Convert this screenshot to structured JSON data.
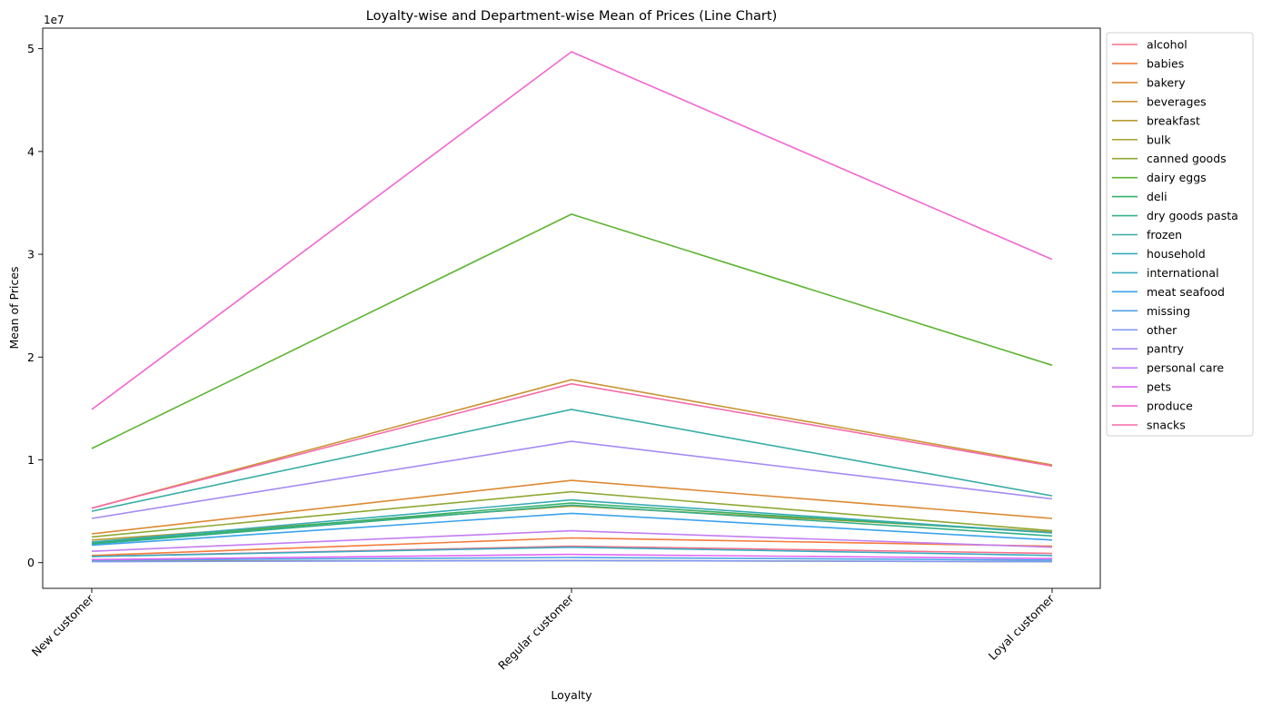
{
  "chart_data": {
    "type": "line",
    "title": "Loyalty-wise and Department-wise Mean of Prices (Line Chart)",
    "xlabel": "Loyalty",
    "ylabel": "Mean of Prices",
    "y_offset_label": "1e7",
    "categories": [
      "New customer",
      "Regular customer",
      "Loyal customer"
    ],
    "ylim": [
      -2500000,
      52000000
    ],
    "yticks": [
      0,
      10000000,
      20000000,
      30000000,
      40000000,
      50000000
    ],
    "ytick_labels": [
      "0",
      "1",
      "2",
      "3",
      "4",
      "5"
    ],
    "grid": false,
    "legend_position": "outside-upper-right",
    "series": [
      {
        "name": "alcohol",
        "color": "#f77189",
        "values": [
          600000,
          1600000,
          900000
        ]
      },
      {
        "name": "babies",
        "color": "#f57b3a",
        "values": [
          700000,
          2400000,
          1600000
        ]
      },
      {
        "name": "bakery",
        "color": "#dc8932",
        "values": [
          2800000,
          8000000,
          4300000
        ]
      },
      {
        "name": "beverages",
        "color": "#c99433",
        "values": [
          5300000,
          17800000,
          9500000
        ]
      },
      {
        "name": "breakfast",
        "color": "#b69c32",
        "values": [
          2200000,
          5500000,
          3000000
        ]
      },
      {
        "name": "bulk",
        "color": "#a4a131",
        "values": [
          150000,
          200000,
          100000
        ]
      },
      {
        "name": "canned goods",
        "color": "#8ea832",
        "values": [
          2500000,
          6900000,
          3100000
        ]
      },
      {
        "name": "dairy eggs",
        "color": "#5cb431",
        "values": [
          11100000,
          33900000,
          19200000
        ]
      },
      {
        "name": "deli",
        "color": "#32b166",
        "values": [
          1900000,
          5800000,
          2900000
        ]
      },
      {
        "name": "dry goods pasta",
        "color": "#34af89",
        "values": [
          1800000,
          5600000,
          2600000
        ]
      },
      {
        "name": "frozen",
        "color": "#36ada4",
        "values": [
          5000000,
          14900000,
          6500000
        ]
      },
      {
        "name": "household",
        "color": "#37abb5",
        "values": [
          2000000,
          6100000,
          2900000
        ]
      },
      {
        "name": "international",
        "color": "#38aabf",
        "values": [
          600000,
          1500000,
          700000
        ]
      },
      {
        "name": "meat seafood",
        "color": "#3ba3ec",
        "values": [
          1700000,
          4800000,
          2200000
        ]
      },
      {
        "name": "missing",
        "color": "#50a2e8",
        "values": [
          250000,
          500000,
          250000
        ]
      },
      {
        "name": "other",
        "color": "#8097f4",
        "values": [
          100000,
          200000,
          100000
        ]
      },
      {
        "name": "pantry",
        "color": "#a58af4",
        "values": [
          4300000,
          11800000,
          6200000
        ]
      },
      {
        "name": "personal care",
        "color": "#c27ef4",
        "values": [
          1100000,
          3100000,
          1500000
        ]
      },
      {
        "name": "pets",
        "color": "#e069f3",
        "values": [
          300000,
          800000,
          400000
        ]
      },
      {
        "name": "produce",
        "color": "#f464d1",
        "values": [
          14900000,
          49700000,
          29500000
        ]
      },
      {
        "name": "snacks",
        "color": "#f56aa8",
        "values": [
          5300000,
          17400000,
          9400000
        ]
      }
    ]
  }
}
